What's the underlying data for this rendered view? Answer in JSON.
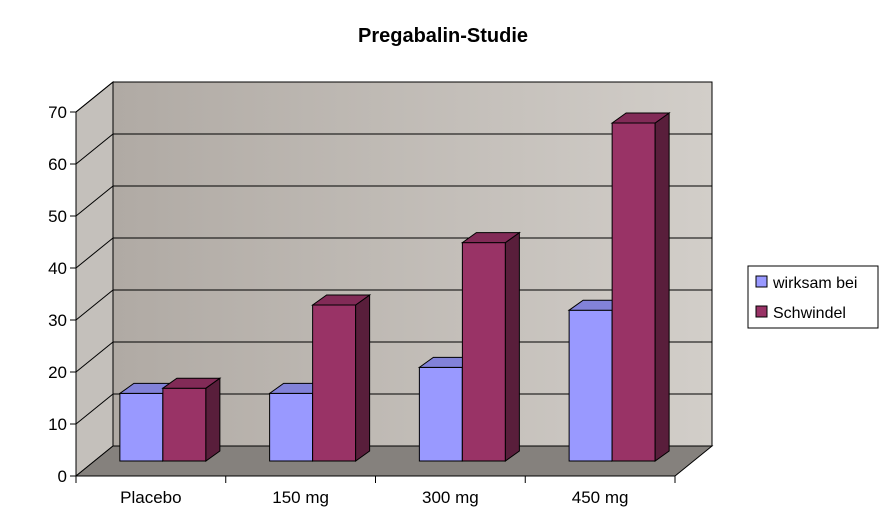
{
  "chart_data": {
    "type": "bar",
    "title": "Pregabalin-Studie",
    "xlabel": "",
    "ylabel": "",
    "categories": [
      "Placebo",
      "150 mg",
      "300 mg",
      "450 mg"
    ],
    "series": [
      {
        "name": "wirksam bei",
        "values": [
          13,
          13,
          18,
          29
        ],
        "color": "#9999ff"
      },
      {
        "name": "Schwindel",
        "values": [
          14,
          30,
          42,
          65
        ],
        "color": "#993366"
      }
    ],
    "ylim": [
      0,
      70
    ],
    "yticks": [
      0,
      10,
      20,
      30,
      40,
      50,
      60,
      70
    ],
    "grid": true,
    "legend_position": "right",
    "style": "3d-clustered-column",
    "colors": {
      "wall": "#c0c0c0",
      "floor": "#808080",
      "grid": "#000000"
    }
  }
}
